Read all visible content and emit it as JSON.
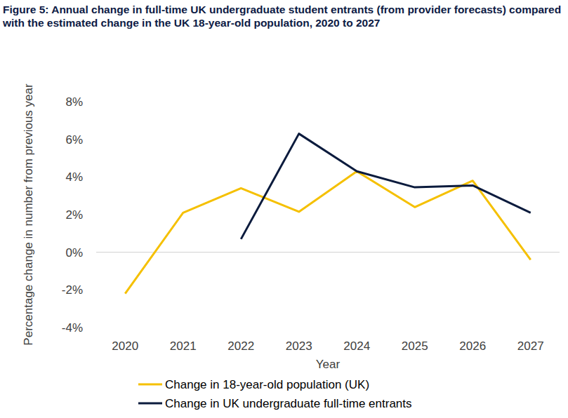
{
  "chart_data": {
    "type": "line",
    "title": "Figure 5: Annual change in full-time UK undergraduate student entrants (from provider forecasts) compared with the estimated change in the UK 18-year-old population, 2020 to 2027",
    "x_label": "Year",
    "y_label": "Percentage change in number from previous year",
    "categories": [
      "2020",
      "2021",
      "2022",
      "2023",
      "2024",
      "2025",
      "2026",
      "2027"
    ],
    "series": [
      {
        "name": "Change in 18-year-old population (UK)",
        "color": "#f5c000",
        "values": [
          -2.2,
          2.1,
          3.4,
          2.15,
          4.3,
          2.4,
          3.8,
          -0.4
        ]
      },
      {
        "name": "Change in UK undergraduate full-time entrants",
        "color": "#0b1b3d",
        "values": [
          null,
          null,
          0.7,
          6.3,
          4.3,
          3.45,
          3.55,
          2.1
        ]
      }
    ],
    "ylim": [
      -4,
      8
    ],
    "yticks": [
      {
        "value": -4,
        "label": "-4%"
      },
      {
        "value": -2,
        "label": "-2%"
      },
      {
        "value": 0,
        "label": "0%"
      },
      {
        "value": 2,
        "label": "2%"
      },
      {
        "value": 4,
        "label": "4%"
      },
      {
        "value": 6,
        "label": "6%"
      },
      {
        "value": 8,
        "label": "8%"
      }
    ],
    "grid": false,
    "legend": "bottom"
  }
}
